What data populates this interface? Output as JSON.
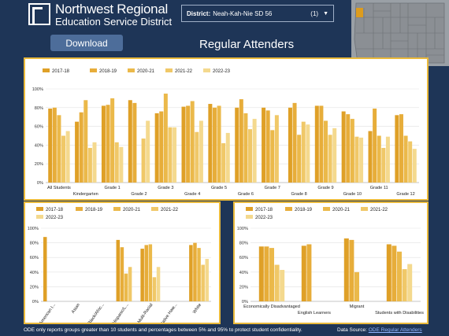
{
  "org": {
    "line1": "Northwest Regional",
    "line2": "Education Service District"
  },
  "district": {
    "label": "District:",
    "value": "Neah-Kah-Nie SD 56",
    "count": "(1)"
  },
  "download_label": "Download",
  "title": "Regular Attenders",
  "footer": "ODE only reports groups greater than 10 students and percentages between 5% and 95% to protect student confidentiality.",
  "source_label": "Data Source:",
  "source_link": "ODE Regular Attenders",
  "colors": [
    "#dfa027",
    "#e7ad3a",
    "#ebb94a",
    "#f0c868",
    "#f4d98e"
  ],
  "chart_data": [
    {
      "type": "bar",
      "series": [
        {
          "name": "2017-18"
        },
        {
          "name": "2018-19"
        },
        {
          "name": "2020-21"
        },
        {
          "name": "2021-22"
        },
        {
          "name": "2022-23"
        }
      ],
      "categories": [
        "All Students",
        "Kindergarten",
        "Grade 1",
        "Grade 2",
        "Grade 3",
        "Grade 4",
        "Grade 5",
        "Grade 6",
        "Grade 7",
        "Grade 8",
        "Grade 9",
        "Grade 10",
        "Grade 11",
        "Grade 12"
      ],
      "values": [
        [
          79,
          80,
          72,
          50,
          55
        ],
        [
          65,
          75,
          88,
          37,
          43
        ],
        [
          82,
          83,
          90,
          43,
          38
        ],
        [
          88,
          85,
          0,
          47,
          66
        ],
        [
          74,
          76,
          95,
          59,
          59
        ],
        [
          81,
          82,
          87,
          54,
          66
        ],
        [
          84,
          80,
          82,
          42,
          53
        ],
        [
          80,
          89,
          74,
          57,
          68
        ],
        [
          80,
          77,
          56,
          72,
          0
        ],
        [
          80,
          85,
          51,
          65,
          62
        ],
        [
          82,
          82,
          66,
          51,
          58
        ],
        [
          76,
          73,
          68,
          49,
          48
        ],
        [
          55,
          79,
          50,
          37,
          49
        ],
        [
          72,
          73,
          50,
          44,
          36
        ]
      ],
      "y_ticks": [
        "0%",
        "20%",
        "40%",
        "60%",
        "80%",
        "100%"
      ],
      "ylim": [
        0,
        100
      ]
    },
    {
      "type": "bar",
      "series": [
        {
          "name": "2017-18"
        },
        {
          "name": "2018-19"
        },
        {
          "name": "2020-21"
        },
        {
          "name": "2021-22"
        },
        {
          "name": "2022-23"
        }
      ],
      "categories": [
        "American I...",
        "Asian",
        "Black/Afric...",
        "Hispanic/L...",
        "Multi-Racial",
        "Native Haw...",
        "White"
      ],
      "values": [
        [
          88,
          0,
          0,
          0,
          0
        ],
        [
          0,
          0,
          0,
          0,
          0
        ],
        [
          0,
          0,
          0,
          0,
          0
        ],
        [
          84,
          74,
          38,
          47,
          0
        ],
        [
          72,
          77,
          78,
          33,
          47
        ],
        [
          0,
          0,
          0,
          0,
          0
        ],
        [
          77,
          80,
          73,
          50,
          58
        ]
      ],
      "y_ticks": [
        "0%",
        "20%",
        "40%",
        "60%",
        "80%",
        "100%"
      ],
      "ylim": [
        0,
        100
      ]
    },
    {
      "type": "bar",
      "series": [
        {
          "name": "2017-18"
        },
        {
          "name": "2018-19"
        },
        {
          "name": "2020-21"
        },
        {
          "name": "2021-22"
        },
        {
          "name": "2022-23"
        }
      ],
      "categories": [
        "Economically Disadvantaged",
        "English Learners",
        "Migrant",
        "Students with Disabilities"
      ],
      "values": [
        [
          75,
          75,
          73,
          50,
          43
        ],
        [
          76,
          78,
          0,
          0,
          0
        ],
        [
          86,
          84,
          40,
          0,
          0
        ],
        [
          78,
          76,
          68,
          44,
          51
        ]
      ],
      "y_ticks": [
        "0%",
        "20%",
        "40%",
        "60%",
        "80%",
        "100%"
      ],
      "ylim": [
        0,
        100
      ]
    }
  ]
}
